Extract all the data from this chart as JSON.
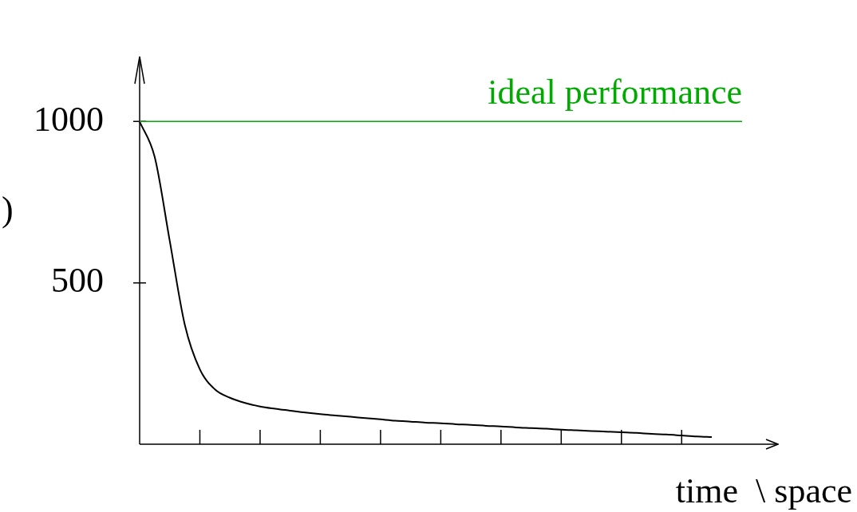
{
  "chart_data": {
    "type": "line",
    "xlabel": "time  \\ space",
    "ylabel": ")",
    "categories": [
      null,
      null,
      null,
      null,
      null,
      null,
      null,
      null,
      null,
      null,
      null,
      null,
      null,
      null,
      null,
      null,
      null,
      null,
      null,
      null,
      null,
      null,
      null,
      null,
      null,
      null,
      null,
      null,
      null,
      null,
      null,
      null,
      null,
      null,
      null,
      null,
      null,
      null,
      null
    ],
    "series": [
      {
        "color": "#000000",
        "values": [
          1000,
          890,
          630,
          370,
          232,
          170,
          144,
          128,
          117,
          110,
          104,
          98,
          93,
          89,
          85,
          81,
          77,
          73,
          70,
          67,
          65,
          62,
          60,
          57,
          55,
          52,
          50,
          48,
          45,
          43,
          41,
          39,
          37,
          35,
          32,
          30,
          27,
          24,
          22
        ]
      }
    ],
    "ylim": [
      0,
      1200
    ],
    "yticks": [
      500,
      1000
    ],
    "tick_labels": "y",
    "ref_lines": [
      {
        "axis": "y",
        "value": 1000,
        "label": "ideal performance",
        "color": "#00aa00"
      }
    ],
    "grid": false,
    "legend": false,
    "marker": "none",
    "line_style": "solid"
  }
}
